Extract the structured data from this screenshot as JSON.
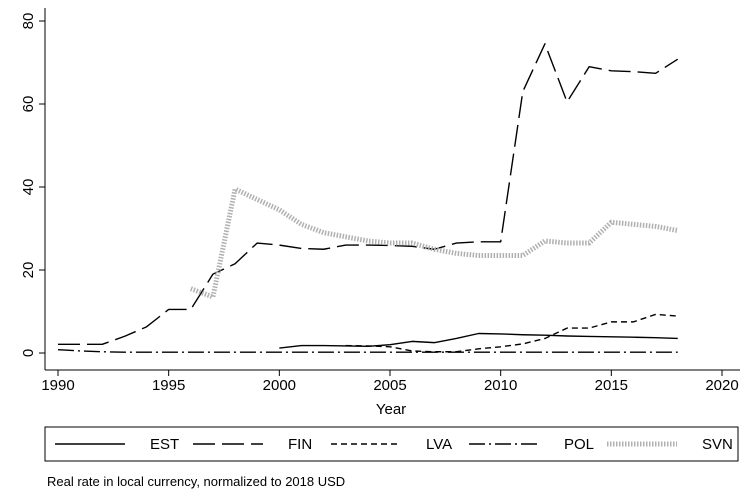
{
  "chart_data": {
    "type": "line",
    "x_label": "Year",
    "note": "Real rate in local currency, normalized to 2018 USD",
    "x": [
      1990,
      1991,
      1992,
      1993,
      1994,
      1995,
      1996,
      1997,
      1998,
      1999,
      2000,
      2001,
      2002,
      2003,
      2004,
      2005,
      2006,
      2007,
      2008,
      2009,
      2010,
      2011,
      2012,
      2013,
      2014,
      2015,
      2016,
      2017,
      2018
    ],
    "xlim": [
      1990,
      2020
    ],
    "xticks": [
      1990,
      1995,
      2000,
      2005,
      2010,
      2015,
      2020
    ],
    "ylim": [
      0,
      80
    ],
    "yticks": [
      0,
      20,
      40,
      60,
      80
    ],
    "series": [
      {
        "name": "EST",
        "color": "#000000",
        "dash": "none",
        "width": 1.4,
        "values": [
          null,
          null,
          null,
          null,
          null,
          null,
          null,
          null,
          null,
          null,
          1.2,
          1.8,
          1.8,
          1.7,
          1.6,
          2.0,
          2.8,
          2.5,
          3.5,
          4.7,
          4.6,
          4.4,
          4.3,
          4.1,
          4.0,
          3.9,
          3.8,
          3.7,
          3.5
        ]
      },
      {
        "name": "FIN",
        "color": "#000000",
        "dash": "22 7",
        "width": 1.4,
        "values": [
          2.1,
          2.1,
          2.1,
          4.0,
          6.3,
          10.5,
          10.5,
          19.0,
          21.5,
          26.5,
          26.0,
          25.2,
          25.0,
          26.0,
          26.0,
          25.9,
          25.7,
          25.0,
          26.5,
          26.8,
          26.8,
          63.0,
          74.5,
          60.5,
          69.0,
          68.0,
          67.8,
          67.4,
          70.8
        ]
      },
      {
        "name": "LVA",
        "color": "#000000",
        "dash": "6 4",
        "width": 1.4,
        "values": [
          null,
          null,
          null,
          null,
          null,
          null,
          null,
          null,
          null,
          null,
          null,
          null,
          null,
          1.8,
          1.7,
          1.5,
          0.5,
          0.3,
          0.3,
          1.0,
          1.5,
          2.2,
          3.5,
          6.0,
          6.0,
          7.5,
          7.5,
          9.3,
          8.9
        ]
      },
      {
        "name": "POL",
        "color": "#000000",
        "dash": "16 4 2 4",
        "width": 1.4,
        "values": [
          0.8,
          0.5,
          0.3,
          0.2,
          0.2,
          0.2,
          0.2,
          0.2,
          0.2,
          0.2,
          0.2,
          0.2,
          0.2,
          0.2,
          0.2,
          0.2,
          0.2,
          0.2,
          0.2,
          0.2,
          0.2,
          0.2,
          0.2,
          0.2,
          0.2,
          0.2,
          0.2,
          0.2,
          0.2
        ]
      },
      {
        "name": "SVN",
        "color": "#b0b0b0",
        "dash": "1.5 1.5",
        "width": 5,
        "values": [
          null,
          null,
          null,
          null,
          null,
          null,
          15.5,
          13.5,
          39.5,
          37.0,
          34.5,
          31.0,
          29.0,
          28.0,
          27.0,
          26.5,
          26.5,
          25.0,
          24.0,
          23.5,
          23.5,
          23.5,
          27.0,
          26.5,
          26.5,
          31.5,
          31.0,
          30.5,
          29.5
        ]
      }
    ]
  }
}
